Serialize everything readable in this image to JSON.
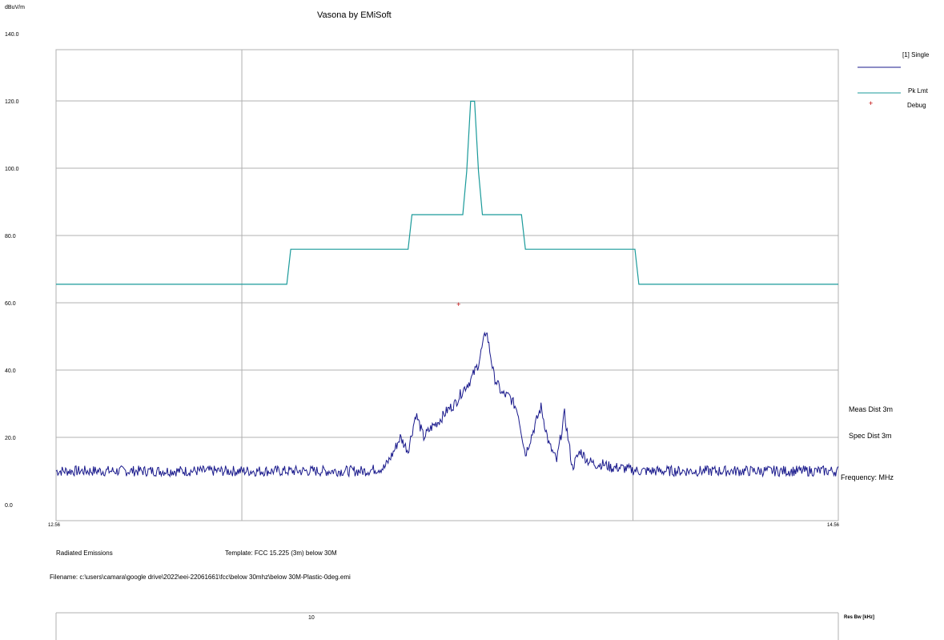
{
  "header": {
    "title": "Vasona by EMiSoft",
    "units": "dBuV/m"
  },
  "legend": {
    "single": "[1] Single",
    "pk_lmt": "Pk Lmt",
    "debug": "Debug",
    "debug_symbol": "+"
  },
  "side_info": {
    "meas_dist": "Meas Dist 3m",
    "spec_dist": "Spec Dist 3m",
    "frequency": "Frequency: MHz"
  },
  "footer": {
    "test_name": "Radiated Emissions",
    "template": "Template: FCC 15.225 (3m) below 30M",
    "filename": "Filename: c:\\users\\camara\\google drive\\2022\\eei-22061661\\fcc\\below 30mhz\\below 30M-Plastic-0deg.emi"
  },
  "rbw": {
    "label": "Res Bw [kHz]",
    "value": "10"
  },
  "colors": {
    "measurement": "#1a1a8c",
    "limit": "#1a9a9a",
    "debug": "#c00000",
    "grid": "#b0b0b0"
  },
  "chart_data": {
    "type": "line",
    "title": "Vasona by EMiSoft",
    "ylabel": "dBuV/m",
    "xlabel": "Frequency: MHz",
    "xlim": [
      12.56,
      14.56
    ],
    "ylim": [
      0,
      140
    ],
    "xscale": "linear",
    "y_tick_labels": [
      "0.0",
      "20.0",
      "40.0",
      "60.0",
      "80.0",
      "100.0",
      "120.0",
      "140.0"
    ],
    "x_tick_labels": [
      "12.56",
      "14.56"
    ],
    "x_gridlines": [
      13.035,
      14.035
    ],
    "grid": true,
    "legend_position": "top-right",
    "series": [
      {
        "name": "[1] Single",
        "x": [
          12.56,
          12.65,
          12.75,
          12.85,
          12.95,
          13.05,
          13.15,
          13.25,
          13.3,
          13.35,
          13.4,
          13.42,
          13.44,
          13.46,
          13.48,
          13.5,
          13.52,
          13.54,
          13.56,
          13.58,
          13.6,
          13.62,
          13.64,
          13.66,
          13.68,
          13.7,
          13.72,
          13.74,
          13.76,
          13.78,
          13.8,
          13.82,
          13.84,
          13.86,
          13.88,
          13.9,
          13.92,
          13.94,
          13.96,
          13.98,
          14.0,
          14.05,
          14.1,
          14.2,
          14.3,
          14.4,
          14.5,
          14.56
        ],
        "values": [
          10,
          10,
          10,
          10,
          10,
          10,
          10,
          10,
          10,
          10,
          11,
          15,
          20,
          16,
          27,
          20,
          23,
          25,
          28,
          30,
          34,
          37,
          42,
          52,
          38,
          33,
          32,
          28,
          15,
          22,
          29,
          18,
          13,
          27,
          11,
          16,
          13,
          12,
          12,
          11,
          11,
          10,
          10,
          10,
          10,
          10,
          10,
          10
        ]
      },
      {
        "name": "Pk Lmt",
        "x": [
          12.56,
          13.15,
          13.16,
          13.46,
          13.47,
          13.6,
          13.61,
          13.62,
          13.63,
          13.64,
          13.65,
          13.75,
          13.76,
          14.04,
          14.05,
          14.56
        ],
        "values": [
          65.5,
          65.5,
          75.9,
          75.9,
          86.2,
          86.2,
          99.1,
          119.9,
          119.9,
          99.1,
          86.2,
          86.2,
          75.9,
          75.9,
          65.5,
          65.5
        ]
      },
      {
        "name": "Debug",
        "x": [
          13.59
        ],
        "values": [
          59.5
        ]
      }
    ]
  }
}
